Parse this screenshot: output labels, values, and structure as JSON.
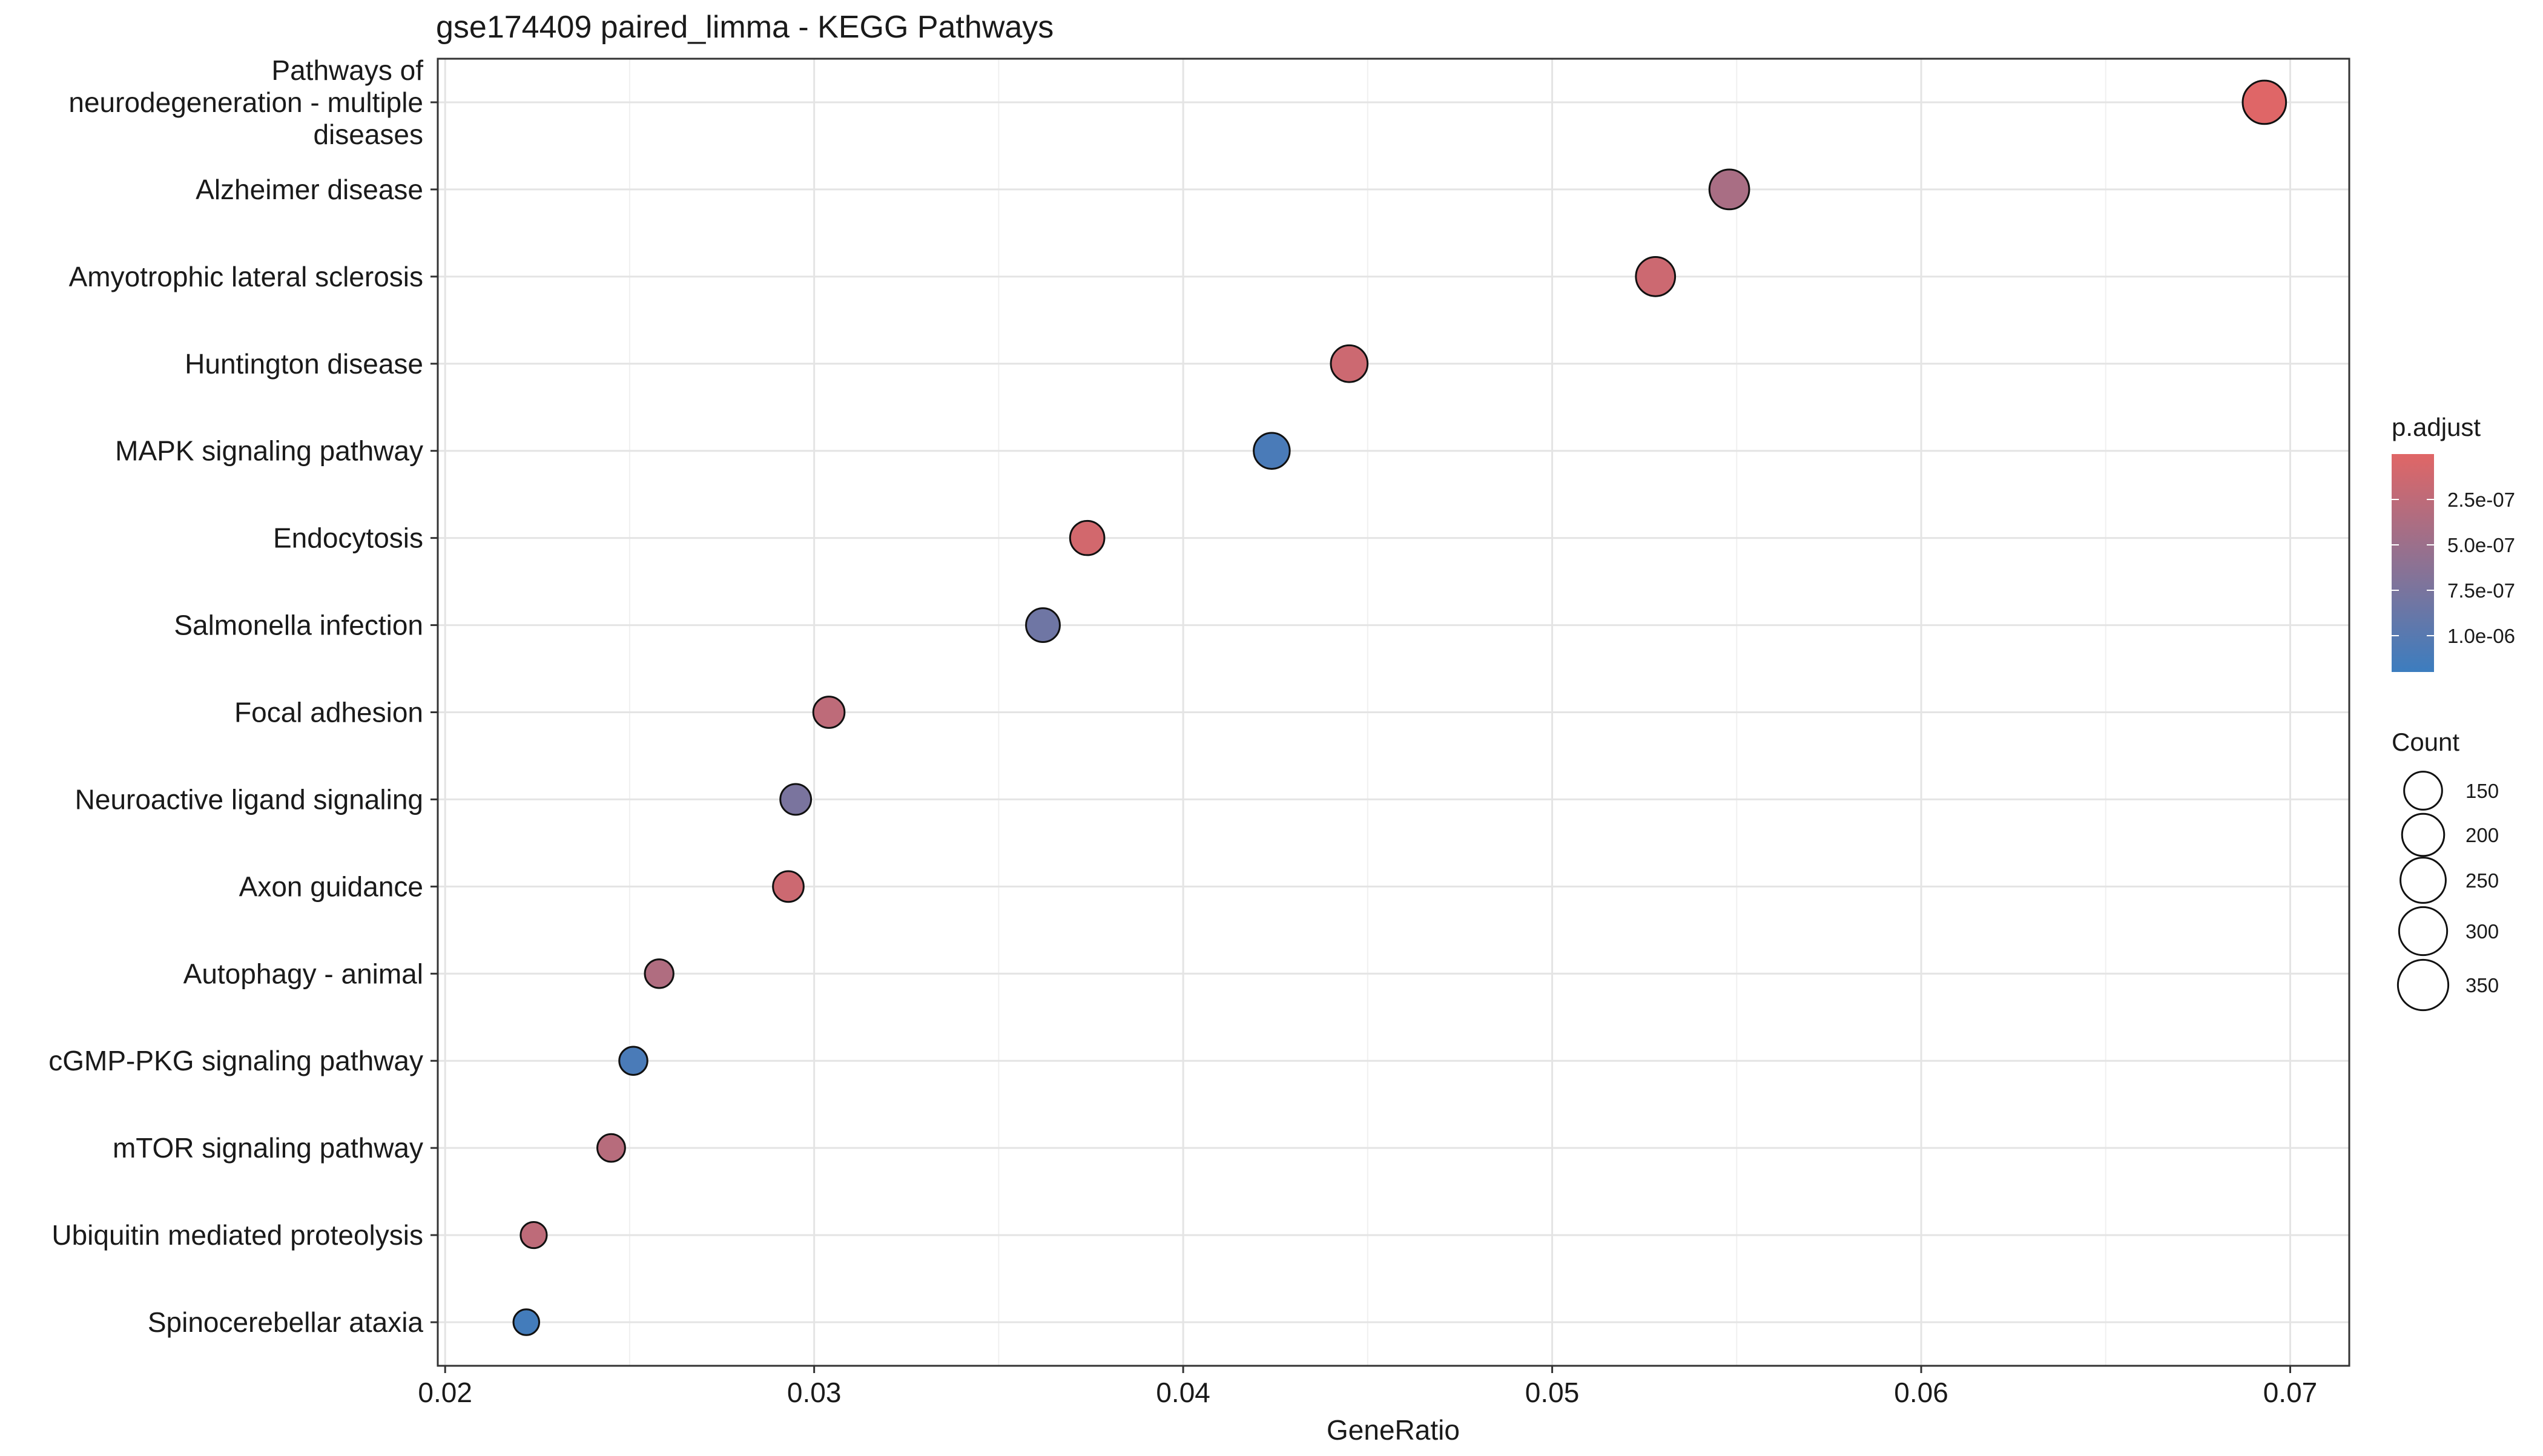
{
  "chart_data": {
    "type": "scatter",
    "title": "gse174409 paired_limma - KEGG Pathways",
    "xlabel": "GeneRatio",
    "ylabel": "",
    "xlim": [
      0.0198,
      0.0716
    ],
    "xticks": [
      0.02,
      0.03,
      0.04,
      0.05,
      0.06,
      0.07
    ],
    "xtick_labels": [
      "0.02",
      "0.03",
      "0.04",
      "0.05",
      "0.06",
      "0.07"
    ],
    "grid": true,
    "points": [
      {
        "term": "Pathways of neurodegeneration - multiple diseases",
        "label_lines": [
          "Pathways of",
          "neurodegeneration - multiple",
          "diseases"
        ],
        "gene_ratio": 0.0693,
        "count": 355,
        "p_adjust": 1e-08
      },
      {
        "term": "Alzheimer disease",
        "label_lines": [
          "Alzheimer disease"
        ],
        "gene_ratio": 0.0548,
        "count": 281,
        "p_adjust": 4e-07
      },
      {
        "term": "Amyotrophic lateral sclerosis",
        "label_lines": [
          "Amyotrophic lateral sclerosis"
        ],
        "gene_ratio": 0.0528,
        "count": 270,
        "p_adjust": 1.5e-07
      },
      {
        "term": "Huntington disease",
        "label_lines": [
          "Huntington disease"
        ],
        "gene_ratio": 0.0445,
        "count": 228,
        "p_adjust": 1.5e-07
      },
      {
        "term": "MAPK signaling pathway",
        "label_lines": [
          "MAPK signaling pathway"
        ],
        "gene_ratio": 0.0424,
        "count": 217,
        "p_adjust": 1.1e-06
      },
      {
        "term": "Endocytosis",
        "label_lines": [
          "Endocytosis"
        ],
        "gene_ratio": 0.0374,
        "count": 192,
        "p_adjust": 1e-07
      },
      {
        "term": "Salmonella infection",
        "label_lines": [
          "Salmonella infection"
        ],
        "gene_ratio": 0.0362,
        "count": 186,
        "p_adjust": 8.3e-07
      },
      {
        "term": "Focal adhesion",
        "label_lines": [
          "Focal adhesion"
        ],
        "gene_ratio": 0.0304,
        "count": 156,
        "p_adjust": 2.5e-07
      },
      {
        "term": "Neuroactive ligand signaling",
        "label_lines": [
          "Neuroactive ligand signaling"
        ],
        "gene_ratio": 0.0295,
        "count": 151,
        "p_adjust": 7.5e-07
      },
      {
        "term": "Axon guidance",
        "label_lines": [
          "Axon guidance"
        ],
        "gene_ratio": 0.0293,
        "count": 150,
        "p_adjust": 1.5e-07
      },
      {
        "term": "Autophagy - animal",
        "label_lines": [
          "Autophagy - animal"
        ],
        "gene_ratio": 0.0258,
        "count": 132,
        "p_adjust": 3.5e-07
      },
      {
        "term": "cGMP-PKG signaling pathway",
        "label_lines": [
          "cGMP-PKG signaling pathway"
        ],
        "gene_ratio": 0.0251,
        "count": 128,
        "p_adjust": 1.1e-06
      },
      {
        "term": "mTOR signaling pathway",
        "label_lines": [
          "mTOR signaling pathway"
        ],
        "gene_ratio": 0.0245,
        "count": 125,
        "p_adjust": 3e-07
      },
      {
        "term": "Ubiquitin mediated proteolysis",
        "label_lines": [
          "Ubiquitin mediated proteolysis"
        ],
        "gene_ratio": 0.0224,
        "count": 115,
        "p_adjust": 2.5e-07
      },
      {
        "term": "Spinocerebellar ataxia",
        "label_lines": [
          "Spinocerebellar ataxia"
        ],
        "gene_ratio": 0.0222,
        "count": 113,
        "p_adjust": 1.15e-06
      }
    ],
    "color_legend": {
      "title": "p.adjust",
      "min": 0,
      "max": 1.2e-06,
      "low_color": "#E06666",
      "high_color": "#3C7DBF",
      "ticks": [
        2.5e-07,
        5e-07,
        7.5e-07,
        1e-06
      ],
      "tick_labels": [
        "2.5e-07",
        "5.0e-07",
        "7.5e-07",
        "1.0e-06"
      ]
    },
    "size_legend": {
      "title": "Count",
      "values": [
        150,
        200,
        250,
        300,
        350
      ],
      "labels": [
        "150",
        "200",
        "250",
        "300",
        "350"
      ]
    },
    "legend_position": "right"
  }
}
